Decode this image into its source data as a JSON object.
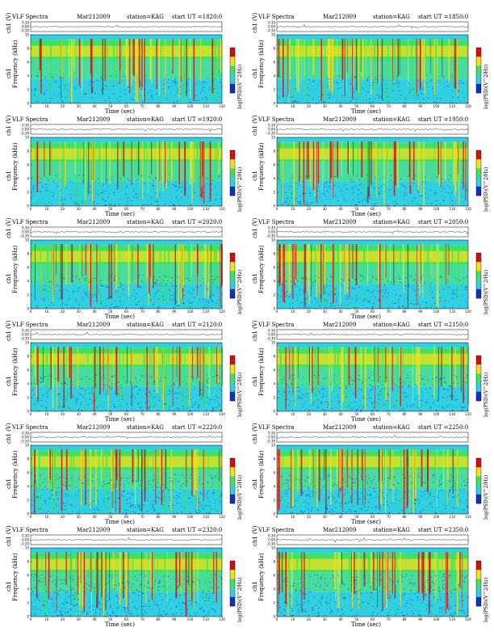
{
  "figure": {
    "title": "VLF Spectra",
    "date": "Mar212009",
    "station": "station=KAG",
    "start_label": "start UT =",
    "xlabel": "Time (sec)",
    "ylabel_top": "ch1 (V)",
    "ylabel_spec": "Frequency (kHz)",
    "ylabel_spec_prefix": "ch1",
    "colorbar_label": "log(PSD)(V^2/Hz)",
    "colors": {
      "low": "#1030c0",
      "mid": "#30d0e0",
      "band": "#40e060",
      "high": "#f0e020",
      "peak": "#d01010"
    }
  },
  "chart_data": [
    {
      "type": "heatmap",
      "start_ut": "1820:0",
      "x": {
        "label": "Time (sec)",
        "range": [
          0,
          120
        ],
        "ticks": [
          0,
          10,
          20,
          30,
          40,
          50,
          60,
          70,
          80,
          90,
          100,
          110,
          120
        ]
      },
      "y": {
        "label": "Frequency (kHz)",
        "range": [
          0,
          10
        ],
        "ticks": [
          0,
          2,
          4,
          6,
          8,
          10
        ]
      },
      "top_trace": {
        "label": "ch1 (V)",
        "ticks": [
          "0.30",
          "0.00",
          "-0.30"
        ]
      }
    },
    {
      "type": "heatmap",
      "start_ut": "1850:0",
      "x": {
        "label": "Time (sec)",
        "range": [
          0,
          120
        ],
        "ticks": [
          0,
          10,
          20,
          30,
          40,
          50,
          60,
          70,
          80,
          90,
          100,
          110,
          120
        ]
      },
      "y": {
        "label": "Frequency (kHz)",
        "range": [
          0,
          10
        ],
        "ticks": [
          0,
          2,
          4,
          6,
          8,
          10
        ]
      },
      "top_trace": {
        "label": "ch1 (V)",
        "ticks": [
          "0.30",
          "0.00",
          "-0.30"
        ]
      }
    },
    {
      "type": "heatmap",
      "start_ut": "1920:0",
      "x": {
        "label": "Time (sec)",
        "range": [
          0,
          120
        ],
        "ticks": [
          0,
          10,
          20,
          30,
          40,
          50,
          60,
          70,
          80,
          90,
          100,
          110,
          120
        ]
      },
      "y": {
        "label": "Frequency (kHz)",
        "range": [
          0,
          10
        ],
        "ticks": [
          0,
          2,
          4,
          6,
          8,
          10
        ]
      },
      "top_trace": {
        "label": "ch1 (V)",
        "ticks": [
          "0.30",
          "0.00",
          "-0.30"
        ]
      }
    },
    {
      "type": "heatmap",
      "start_ut": "1950:0",
      "x": {
        "label": "Time (sec)",
        "range": [
          0,
          120
        ],
        "ticks": [
          0,
          10,
          20,
          30,
          40,
          50,
          60,
          70,
          80,
          90,
          100,
          110,
          120
        ]
      },
      "y": {
        "label": "Frequency (kHz)",
        "range": [
          0,
          10
        ],
        "ticks": [
          0,
          2,
          4,
          6,
          8,
          10
        ]
      },
      "top_trace": {
        "label": "ch1 (V)",
        "ticks": [
          "0.30",
          "0.00",
          "-0.30"
        ]
      }
    },
    {
      "type": "heatmap",
      "start_ut": "2020:0",
      "x": {
        "label": "Time (sec)",
        "range": [
          0,
          120
        ],
        "ticks": [
          0,
          10,
          20,
          30,
          40,
          50,
          60,
          70,
          80,
          90,
          100,
          110,
          120
        ]
      },
      "y": {
        "label": "Frequency (kHz)",
        "range": [
          0,
          10
        ],
        "ticks": [
          0,
          2,
          4,
          6,
          8,
          10
        ]
      },
      "top_trace": {
        "label": "ch1 (V)",
        "ticks": [
          "0.30",
          "0.00",
          "-0.30"
        ]
      }
    },
    {
      "type": "heatmap",
      "start_ut": "2050:0",
      "x": {
        "label": "Time (sec)",
        "range": [
          0,
          120
        ],
        "ticks": [
          0,
          10,
          20,
          30,
          40,
          50,
          60,
          70,
          80,
          90,
          100,
          110,
          120
        ]
      },
      "y": {
        "label": "Frequency (kHz)",
        "range": [
          0,
          10
        ],
        "ticks": [
          0,
          2,
          4,
          6,
          8,
          10
        ]
      },
      "top_trace": {
        "label": "ch1 (V)",
        "ticks": [
          "0.30",
          "0.00",
          "-0.30"
        ]
      }
    },
    {
      "type": "heatmap",
      "start_ut": "2120:0",
      "x": {
        "label": "Time (sec)",
        "range": [
          0,
          120
        ],
        "ticks": [
          0,
          10,
          20,
          30,
          40,
          50,
          60,
          70,
          80,
          90,
          100,
          110,
          120
        ]
      },
      "y": {
        "label": "Frequency (kHz)",
        "range": [
          0,
          10
        ],
        "ticks": [
          0,
          2,
          4,
          6,
          8,
          10
        ]
      },
      "top_trace": {
        "label": "ch1 (V)",
        "ticks": [
          "0.30",
          "0.00",
          "-0.30"
        ]
      }
    },
    {
      "type": "heatmap",
      "start_ut": "2150:0",
      "x": {
        "label": "Time (sec)",
        "range": [
          0,
          120
        ],
        "ticks": [
          0,
          10,
          20,
          30,
          40,
          50,
          60,
          70,
          80,
          90,
          100,
          110,
          120
        ]
      },
      "y": {
        "label": "Frequency (kHz)",
        "range": [
          0,
          10
        ],
        "ticks": [
          0,
          2,
          4,
          6,
          8,
          10
        ]
      },
      "top_trace": {
        "label": "ch1 (V)",
        "ticks": [
          "0.30",
          "0.00",
          "-0.30"
        ]
      }
    },
    {
      "type": "heatmap",
      "start_ut": "2220:0",
      "x": {
        "label": "Time (sec)",
        "range": [
          0,
          120
        ],
        "ticks": [
          0,
          10,
          20,
          30,
          40,
          50,
          60,
          70,
          80,
          90,
          100,
          110,
          120
        ]
      },
      "y": {
        "label": "Frequency (kHz)",
        "range": [
          0,
          10
        ],
        "ticks": [
          0,
          2,
          4,
          6,
          8,
          10
        ]
      },
      "top_trace": {
        "label": "ch1 (V)",
        "ticks": [
          "0.30",
          "0.00",
          "-0.30"
        ]
      }
    },
    {
      "type": "heatmap",
      "start_ut": "2250:0",
      "x": {
        "label": "Time (sec)",
        "range": [
          0,
          120
        ],
        "ticks": [
          0,
          10,
          20,
          30,
          40,
          50,
          60,
          70,
          80,
          90,
          100,
          110,
          120
        ]
      },
      "y": {
        "label": "Frequency (kHz)",
        "range": [
          0,
          10
        ],
        "ticks": [
          0,
          2,
          4,
          6,
          8,
          10
        ]
      },
      "top_trace": {
        "label": "ch1 (V)",
        "ticks": [
          "0.30",
          "0.00",
          "-0.30"
        ]
      }
    },
    {
      "type": "heatmap",
      "start_ut": "2320:0",
      "x": {
        "label": "Time (sec)",
        "range": [
          0,
          120
        ],
        "ticks": [
          0,
          10,
          20,
          30,
          40,
          50,
          60,
          70,
          80,
          90,
          100,
          110,
          120
        ]
      },
      "y": {
        "label": "Frequency (kHz)",
        "range": [
          0,
          10
        ],
        "ticks": [
          0,
          2,
          4,
          6,
          8,
          10
        ]
      },
      "top_trace": {
        "label": "ch1 (V)",
        "ticks": [
          "0.30",
          "0.00",
          "-0.30"
        ]
      }
    },
    {
      "type": "heatmap",
      "start_ut": "2350:0",
      "x": {
        "label": "Time (sec)",
        "range": [
          0,
          120
        ],
        "ticks": [
          0,
          10,
          20,
          30,
          40,
          50,
          60,
          70,
          80,
          90,
          100,
          110,
          120
        ]
      },
      "y": {
        "label": "Frequency (kHz)",
        "range": [
          0,
          10
        ],
        "ticks": [
          0,
          2,
          4,
          6,
          8,
          10
        ]
      },
      "top_trace": {
        "label": "ch1 (V)",
        "ticks": [
          "0.30",
          "0.00",
          "-0.30"
        ]
      }
    }
  ]
}
